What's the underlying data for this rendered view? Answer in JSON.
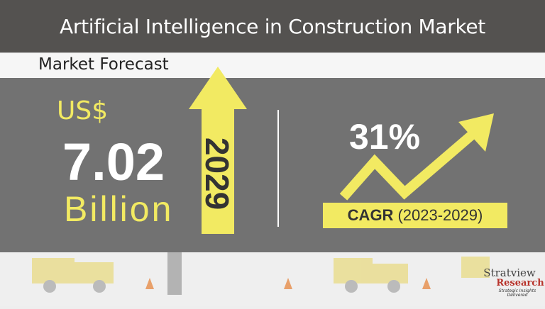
{
  "header": {
    "title": "Artificial Intelligence in Construction Market"
  },
  "subheader": {
    "title": "Market Forecast"
  },
  "forecast": {
    "currency": "US$",
    "value": "7.02",
    "unit": "Billion",
    "year": "2029"
  },
  "growth": {
    "rate": "31%",
    "label_bold": "CAGR",
    "label_period": "(2023-2029)"
  },
  "logo": {
    "name": "Stratview",
    "name2": "Research",
    "tagline": "Strategic Insights Delivered"
  },
  "colors": {
    "header_bg": "#545250",
    "panel_bg": "#727272",
    "accent_yellow": "#f2ea62",
    "text_white": "#ffffff"
  }
}
